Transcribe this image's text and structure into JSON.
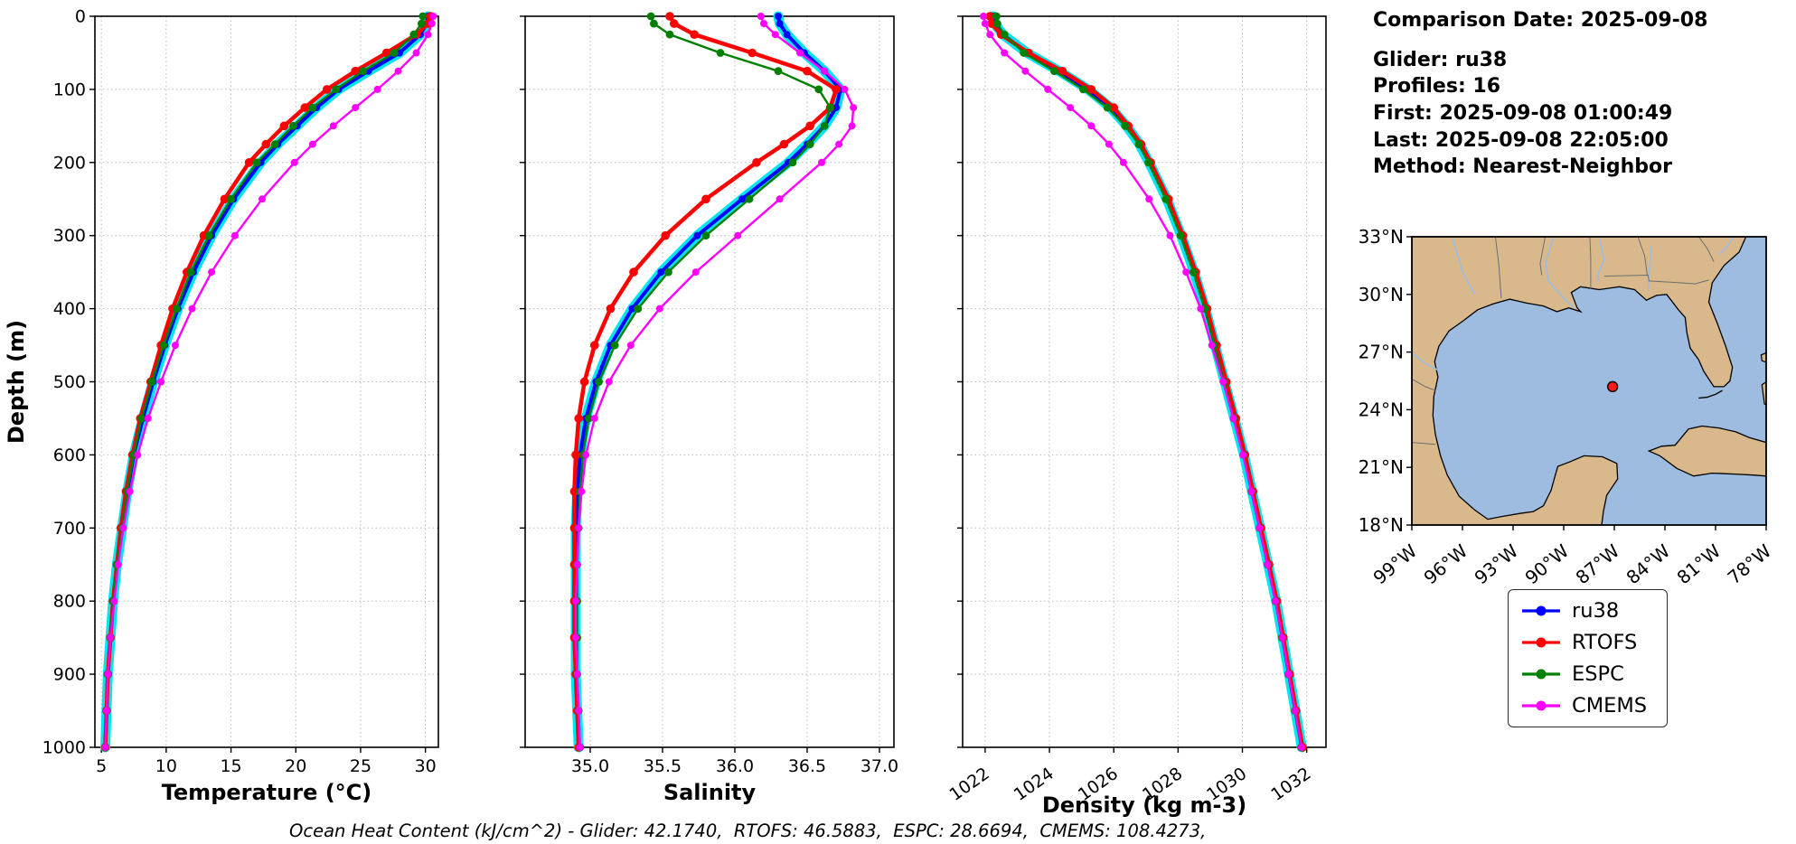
{
  "info": {
    "comparison_date": "Comparison Date: 2025-09-08",
    "glider": "Glider: ru38",
    "profiles": "Profiles: 16",
    "first": "First: 2025-09-08 01:00:49",
    "last": "Last: 2025-09-08 22:05:00",
    "method": "Method: Nearest-Neighbor"
  },
  "caption": "Ocean Heat Content (kJ/cm^2) - Glider: 42.1740,  RTOFS: 46.5883,  ESPC: 28.6694,  CMEMS: 108.4273,",
  "legend": {
    "items": [
      {
        "label": "ru38",
        "color": "#0000ff"
      },
      {
        "label": "RTOFS",
        "color": "#ff0000"
      },
      {
        "label": "ESPC",
        "color": "#008000"
      },
      {
        "label": "CMEMS",
        "color": "#ff00ff"
      }
    ]
  },
  "map": {
    "extent": {
      "lon_min": -99,
      "lon_max": -78,
      "lat_min": 18,
      "lat_max": 33
    },
    "lat_ticks": [
      {
        "v": 33,
        "label": "33°N"
      },
      {
        "v": 30,
        "label": "30°N"
      },
      {
        "v": 27,
        "label": "27°N"
      },
      {
        "v": 24,
        "label": "24°N"
      },
      {
        "v": 21,
        "label": "21°N"
      },
      {
        "v": 18,
        "label": "18°N"
      }
    ],
    "lon_ticks": [
      {
        "v": -99,
        "label": "99°W"
      },
      {
        "v": -96,
        "label": "96°W"
      },
      {
        "v": -93,
        "label": "93°W"
      },
      {
        "v": -90,
        "label": "90°W"
      },
      {
        "v": -87,
        "label": "87°W"
      },
      {
        "v": -84,
        "label": "84°W"
      },
      {
        "v": -81,
        "label": "81°W"
      },
      {
        "v": -78,
        "label": "78°W"
      }
    ],
    "marker": {
      "lon": -87.1,
      "lat": 25.2,
      "color": "#ff1a1a",
      "edge": "#000000"
    },
    "land_color": "#d9b98c",
    "water_color": "#9dbcdf"
  },
  "chart_data": {
    "type": "line",
    "title": "",
    "grid": true,
    "legend_position": "right-bottom",
    "glider_halo_color": "#00e5ef",
    "depths": [
      0,
      10,
      25,
      50,
      75,
      100,
      125,
      150,
      175,
      200,
      250,
      300,
      350,
      400,
      450,
      500,
      550,
      600,
      650,
      700,
      750,
      800,
      850,
      900,
      950,
      1000
    ],
    "depth_axis": {
      "label": "Depth (m)",
      "range": [
        0,
        1000
      ],
      "inverted": true,
      "ticks": [
        0,
        100,
        200,
        300,
        400,
        500,
        600,
        700,
        800,
        900,
        1000
      ]
    },
    "panels": [
      {
        "id": "temperature",
        "xlabel": "Temperature (°C)",
        "xlim": [
          4.5,
          31.0
        ],
        "xticks": [
          5,
          10,
          15,
          20,
          25,
          30
        ],
        "xticklabels": [
          "5",
          "10",
          "15",
          "20",
          "25",
          "30"
        ],
        "rotate_xticklabels": false,
        "series_key": "temperature"
      },
      {
        "id": "salinity",
        "xlabel": "Salinity",
        "xlim": [
          34.55,
          37.1
        ],
        "xticks": [
          35.0,
          35.5,
          36.0,
          36.5,
          37.0
        ],
        "xticklabels": [
          "35.0",
          "35.5",
          "36.0",
          "36.5",
          "37.0"
        ],
        "rotate_xticklabels": false,
        "series_key": "salinity"
      },
      {
        "id": "density",
        "xlabel": "Density (kg m-3)",
        "xlim": [
          1021.3,
          1032.6
        ],
        "xticks": [
          1022,
          1024,
          1026,
          1028,
          1030,
          1032
        ],
        "xticklabels": [
          "1022",
          "1024",
          "1026",
          "1028",
          "1030",
          "1032"
        ],
        "rotate_xticklabels": true,
        "series_key": "density"
      }
    ],
    "series": [
      {
        "name": "ru38",
        "color": "#0000ff",
        "values": {
          "temperature": [
            30.2,
            30.1,
            29.6,
            28.0,
            25.6,
            23.3,
            21.6,
            20.1,
            18.6,
            17.3,
            15.2,
            13.5,
            12.1,
            10.9,
            9.9,
            9.0,
            8.2,
            7.5,
            7.0,
            6.6,
            6.2,
            5.9,
            5.7,
            5.5,
            5.4,
            5.3
          ],
          "salinity": [
            36.3,
            36.31,
            36.36,
            36.48,
            36.62,
            36.73,
            36.7,
            36.62,
            36.5,
            36.37,
            36.05,
            35.74,
            35.49,
            35.29,
            35.14,
            35.04,
            34.97,
            34.93,
            34.91,
            34.9,
            34.9,
            34.9,
            34.9,
            34.9,
            34.91,
            34.92
          ],
          "density": [
            1022.25,
            1022.3,
            1022.55,
            1023.3,
            1024.3,
            1025.2,
            1025.9,
            1026.4,
            1026.8,
            1027.1,
            1027.65,
            1028.1,
            1028.5,
            1028.85,
            1029.15,
            1029.45,
            1029.75,
            1030.05,
            1030.3,
            1030.55,
            1030.8,
            1031.05,
            1031.25,
            1031.45,
            1031.65,
            1031.85
          ]
        }
      },
      {
        "name": "RTOFS",
        "color": "#ff0000",
        "values": {
          "temperature": [
            30.4,
            30.2,
            29.3,
            27.0,
            24.6,
            22.4,
            20.7,
            19.1,
            17.7,
            16.4,
            14.5,
            12.9,
            11.6,
            10.5,
            9.6,
            8.8,
            8.0,
            7.4,
            6.9,
            6.5,
            6.2,
            5.9,
            5.7,
            5.5,
            5.4,
            5.3
          ],
          "salinity": [
            35.55,
            35.58,
            35.72,
            36.12,
            36.5,
            36.7,
            36.66,
            36.52,
            36.34,
            36.15,
            35.8,
            35.52,
            35.3,
            35.14,
            35.03,
            34.96,
            34.92,
            34.9,
            34.89,
            34.89,
            34.89,
            34.89,
            34.89,
            34.9,
            34.91,
            34.92
          ],
          "density": [
            1022.15,
            1022.2,
            1022.5,
            1023.35,
            1024.4,
            1025.3,
            1026.0,
            1026.45,
            1026.85,
            1027.15,
            1027.7,
            1028.15,
            1028.55,
            1028.9,
            1029.2,
            1029.5,
            1029.8,
            1030.08,
            1030.33,
            1030.58,
            1030.83,
            1031.07,
            1031.27,
            1031.47,
            1031.67,
            1031.87
          ]
        }
      },
      {
        "name": "ESPC",
        "color": "#008000",
        "values": {
          "temperature": [
            29.8,
            29.7,
            29.1,
            27.6,
            25.2,
            23.1,
            21.3,
            19.8,
            18.4,
            17.0,
            15.0,
            13.3,
            11.9,
            10.8,
            9.8,
            8.9,
            8.1,
            7.5,
            7.0,
            6.6,
            6.2,
            5.9,
            5.7,
            5.5,
            5.4,
            5.3
          ],
          "salinity": [
            35.42,
            35.44,
            35.55,
            35.9,
            36.3,
            36.58,
            36.66,
            36.62,
            36.52,
            36.4,
            36.1,
            35.8,
            35.54,
            35.33,
            35.17,
            35.06,
            34.99,
            34.95,
            34.93,
            34.92,
            34.91,
            34.91,
            34.91,
            34.91,
            34.92,
            34.93
          ],
          "density": [
            1022.35,
            1022.38,
            1022.6,
            1023.2,
            1024.15,
            1025.05,
            1025.8,
            1026.35,
            1026.78,
            1027.08,
            1027.62,
            1028.08,
            1028.48,
            1028.83,
            1029.13,
            1029.43,
            1029.73,
            1030.03,
            1030.28,
            1030.53,
            1030.78,
            1031.03,
            1031.23,
            1031.43,
            1031.63,
            1031.83
          ]
        }
      },
      {
        "name": "CMEMS",
        "color": "#ff00ff",
        "values": {
          "temperature": [
            30.6,
            30.5,
            30.2,
            29.3,
            27.9,
            26.3,
            24.6,
            22.9,
            21.3,
            19.9,
            17.4,
            15.3,
            13.5,
            12.0,
            10.7,
            9.6,
            8.6,
            7.8,
            7.2,
            6.7,
            6.3,
            6.0,
            5.7,
            5.5,
            5.4,
            5.3
          ],
          "salinity": [
            36.18,
            36.2,
            36.28,
            36.45,
            36.62,
            36.76,
            36.82,
            36.81,
            36.72,
            36.6,
            36.31,
            36.02,
            35.73,
            35.48,
            35.28,
            35.13,
            35.03,
            34.97,
            34.94,
            34.92,
            34.91,
            34.9,
            34.9,
            34.91,
            34.92,
            34.93
          ],
          "density": [
            1021.95,
            1022.0,
            1022.15,
            1022.6,
            1023.25,
            1023.95,
            1024.65,
            1025.3,
            1025.85,
            1026.3,
            1027.1,
            1027.75,
            1028.25,
            1028.7,
            1029.05,
            1029.4,
            1029.72,
            1030.02,
            1030.28,
            1030.53,
            1030.78,
            1031.03,
            1031.24,
            1031.44,
            1031.64,
            1031.84
          ]
        }
      }
    ]
  }
}
